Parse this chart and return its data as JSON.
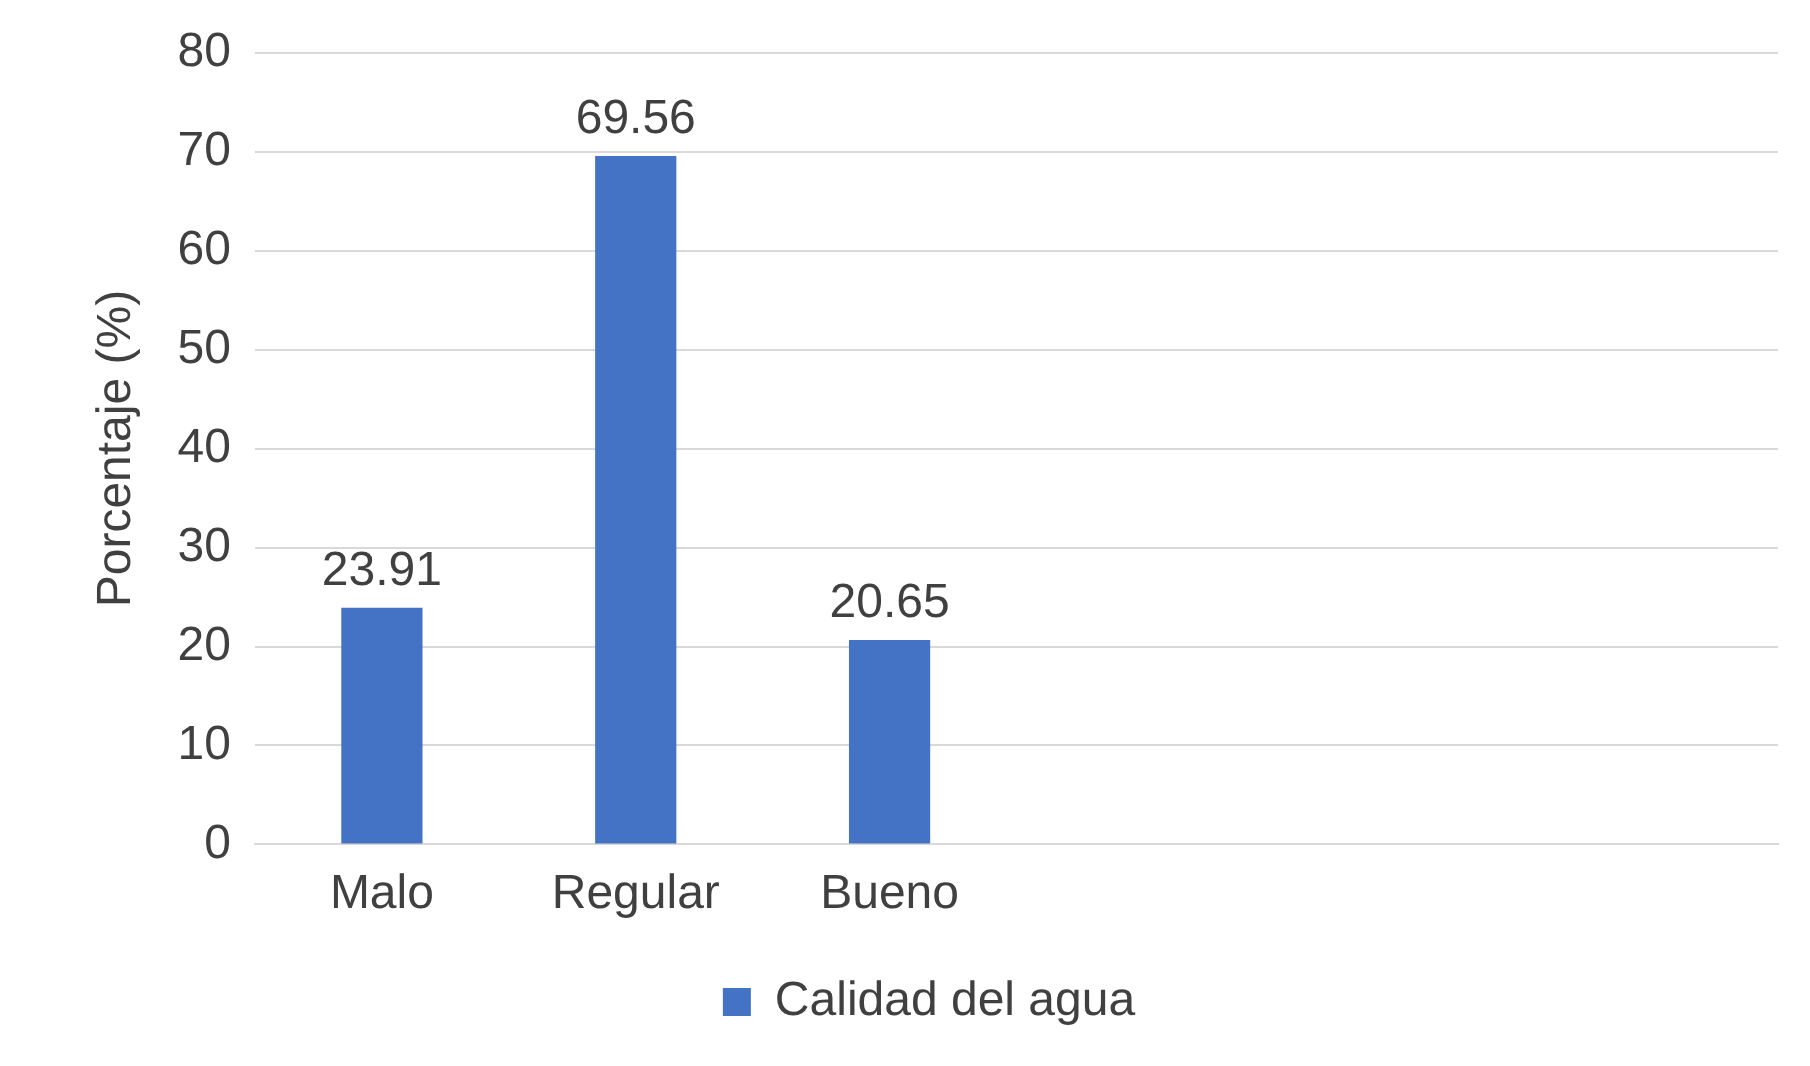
{
  "chart_data": {
    "type": "bar",
    "ylabel": "Porcentaje (%)",
    "categories": [
      "Malo",
      "Regular",
      "Bueno",
      null,
      null,
      null
    ],
    "series": [
      {
        "name": "Calidad del agua",
        "color": "#4472c4",
        "values": [
          23.91,
          69.56,
          20.65,
          null,
          null,
          null
        ]
      }
    ],
    "ylim": [
      0,
      80
    ],
    "yticks": [
      0,
      10,
      20,
      30,
      40,
      50,
      60,
      70,
      80
    ],
    "grid": "y",
    "legend": "bottom",
    "data_labels": true
  }
}
